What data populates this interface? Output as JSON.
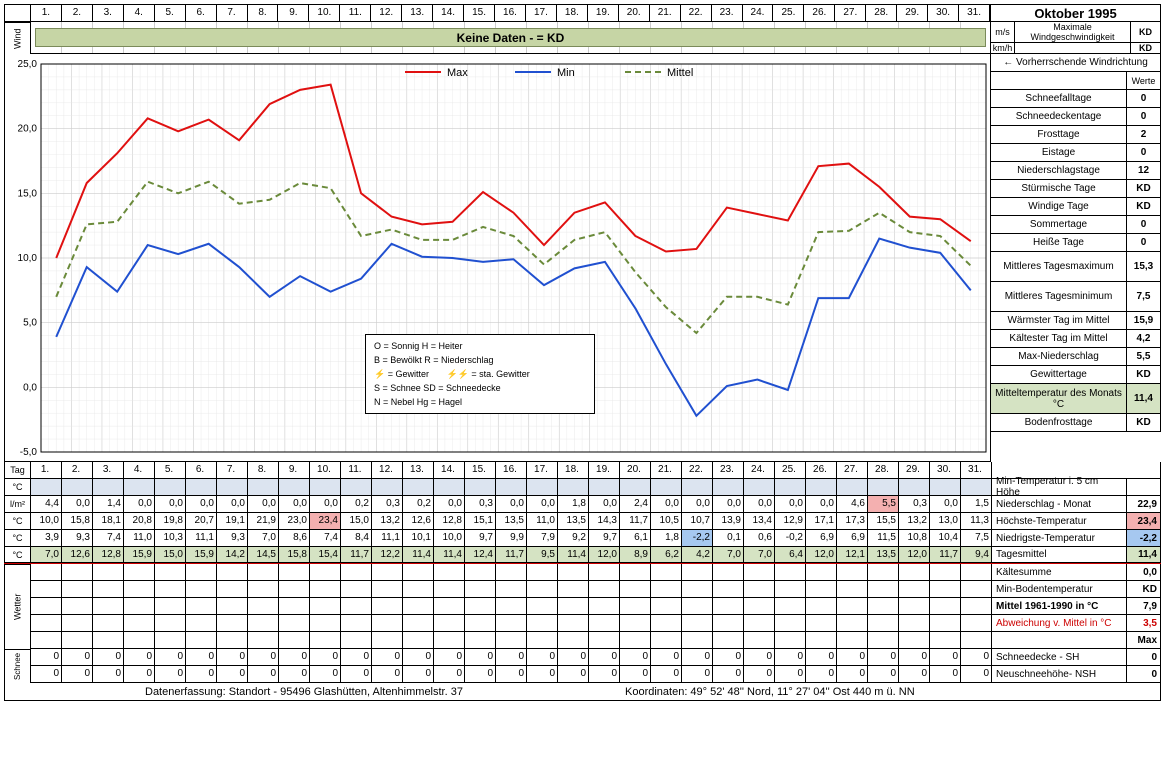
{
  "title": "Oktober 1995",
  "days": [
    "1.",
    "2.",
    "3.",
    "4.",
    "5.",
    "6.",
    "7.",
    "8.",
    "9.",
    "10.",
    "11.",
    "12.",
    "13.",
    "14.",
    "15.",
    "16.",
    "17.",
    "18.",
    "19.",
    "20.",
    "21.",
    "22.",
    "23.",
    "24.",
    "25.",
    "26.",
    "27.",
    "28.",
    "29.",
    "30.",
    "31."
  ],
  "wind": {
    "label": "Wind",
    "banner": "Keine Daten -  = KD",
    "ms_label": "m/s",
    "kmh_label": "km/h",
    "max_label": "Maximale Windgeschwindigkeit",
    "ms_value": "KD",
    "kmh_value": "KD"
  },
  "chart": {
    "type": "line",
    "ylim": [
      -5,
      25
    ],
    "ytick_step": 5,
    "yticks": [
      "25,0",
      "20,0",
      "15,0",
      "10,0",
      "5,0",
      "0,0",
      "-5,0"
    ],
    "grid_color": "#cccccc",
    "minor_grid_color": "#e6e6e6",
    "series": {
      "max": {
        "label": "Max",
        "color": "#e01010",
        "dash": "none",
        "width": 2,
        "values": [
          10.0,
          15.8,
          18.1,
          20.8,
          19.8,
          20.7,
          19.1,
          21.9,
          23.0,
          23.4,
          15.0,
          13.2,
          12.6,
          12.8,
          15.1,
          13.5,
          11.0,
          13.5,
          14.3,
          11.7,
          10.5,
          10.7,
          13.9,
          13.4,
          12.9,
          17.1,
          17.3,
          15.5,
          13.2,
          13.0,
          11.3
        ]
      },
      "min": {
        "label": "Min",
        "color": "#2050d0",
        "dash": "none",
        "width": 2,
        "values": [
          3.9,
          9.3,
          7.4,
          11.0,
          10.3,
          11.1,
          9.3,
          7.0,
          8.6,
          7.4,
          8.4,
          11.1,
          10.1,
          10.0,
          9.7,
          9.9,
          7.9,
          9.2,
          9.7,
          6.1,
          1.8,
          -2.2,
          0.1,
          0.6,
          -0.2,
          6.9,
          6.9,
          11.5,
          10.8,
          10.4,
          7.5
        ]
      },
      "mittel": {
        "label": "Mittel",
        "color": "#6a8a3a",
        "dash": "6,4",
        "width": 2,
        "values": [
          7.0,
          12.6,
          12.8,
          15.9,
          15.0,
          15.9,
          14.2,
          14.5,
          15.8,
          15.4,
          11.7,
          12.2,
          11.4,
          11.4,
          12.4,
          11.7,
          9.5,
          11.4,
          12.0,
          8.9,
          6.2,
          4.2,
          7.0,
          7.0,
          6.4,
          12.0,
          12.1,
          13.5,
          12.0,
          11.7,
          9.4
        ]
      }
    },
    "symbol_legend": [
      "O = Sonnig            H = Heiter",
      "B = Bewölkt           R = Niederschlag",
      "⚡ = Gewitter          ⚡⚡ = sta. Gewitter",
      "S = Schnee            SD = Schneedecke",
      "N = Nebel             Hg = Hagel"
    ]
  },
  "right_panel": [
    {
      "label": "← Vorherrschende Windrichtung",
      "value": "",
      "height": "short"
    },
    {
      "label": "",
      "value": "Werte",
      "height": "short",
      "small": true
    },
    {
      "label": "Schneefalltage",
      "value": "0"
    },
    {
      "label": "Schneedeckentage",
      "value": "0"
    },
    {
      "label": "Frosttage",
      "value": "2"
    },
    {
      "label": "Eistage",
      "value": "0"
    },
    {
      "label": "Niederschlagstage",
      "value": "12"
    },
    {
      "label": "Stürmische Tage",
      "value": "KD"
    },
    {
      "label": "Windige Tage",
      "value": "KD"
    },
    {
      "label": "Sommertage",
      "value": "0"
    },
    {
      "label": "Heiße Tage",
      "value": "0"
    },
    {
      "label": "Mittleres Tagesmaximum",
      "value": "15,3",
      "tall": true
    },
    {
      "label": "Mittleres Tagesminimum",
      "value": "7,5",
      "tall": true
    },
    {
      "label": "Wärmster Tag im Mittel",
      "value": "15,9"
    },
    {
      "label": "Kältester Tag im Mittel",
      "value": "4,2"
    },
    {
      "label": "Max-Niederschlag",
      "value": "5,5"
    },
    {
      "label": "Gewittertage",
      "value": "KD"
    },
    {
      "label": "Mitteltemperatur des Monats °C",
      "value": "11,4",
      "tall": true,
      "hl": true
    },
    {
      "label": "Bodenfrosttage",
      "value": "KD"
    }
  ],
  "tagrow_label": "Tag",
  "data_rows": [
    {
      "unit": "°C",
      "shade": "shade",
      "summary_label": "Min-Temperatur i. 5 cm Höhe",
      "summary_value": "",
      "values": [
        "",
        "",
        "",
        "",
        "",
        "",
        "",
        "",
        "",
        "",
        "",
        "",
        "",
        "",
        "",
        "",
        "",
        "",
        "",
        "",
        "",
        "",
        "",
        "",
        "",
        "",
        "",
        "",
        "",
        "",
        ""
      ]
    },
    {
      "unit": "l/m²",
      "summary_label": "Niederschlag - Monat",
      "summary_value": "22,9",
      "values": [
        "4,4",
        "0,0",
        "1,4",
        "0,0",
        "0,0",
        "0,0",
        "0,0",
        "0,0",
        "0,0",
        "0,0",
        "0,2",
        "0,3",
        "0,2",
        "0,0",
        "0,3",
        "0,0",
        "0,0",
        "1,8",
        "0,0",
        "2,4",
        "0,0",
        "0,0",
        "0,0",
        "0,0",
        "0,0",
        "0,0",
        "4,6",
        "5,5",
        "0,3",
        "0,0",
        "1,5"
      ],
      "hl_cells": {
        "27": "hl-max"
      }
    },
    {
      "unit": "°C",
      "summary_label": "Höchste-Temperatur",
      "summary_value": "23,4",
      "sum_hl": "hl-max",
      "values": [
        "10,0",
        "15,8",
        "18,1",
        "20,8",
        "19,8",
        "20,7",
        "19,1",
        "21,9",
        "23,0",
        "23,4",
        "15,0",
        "13,2",
        "12,6",
        "12,8",
        "15,1",
        "13,5",
        "11,0",
        "13,5",
        "14,3",
        "11,7",
        "10,5",
        "10,7",
        "13,9",
        "13,4",
        "12,9",
        "17,1",
        "17,3",
        "15,5",
        "13,2",
        "13,0",
        "11,3"
      ],
      "hl_cells": {
        "9": "hl-max"
      }
    },
    {
      "unit": "°C",
      "summary_label": "Niedrigste-Temperatur",
      "summary_value": "-2,2",
      "sum_hl": "hl-min",
      "values": [
        "3,9",
        "9,3",
        "7,4",
        "11,0",
        "10,3",
        "11,1",
        "9,3",
        "7,0",
        "8,6",
        "7,4",
        "8,4",
        "11,1",
        "10,1",
        "10,0",
        "9,7",
        "9,9",
        "7,9",
        "9,2",
        "9,7",
        "6,1",
        "1,8",
        "-2,2",
        "0,1",
        "0,6",
        "-0,2",
        "6,9",
        "6,9",
        "11,5",
        "10,8",
        "10,4",
        "7,5"
      ],
      "hl_cells": {
        "21": "hl-min"
      }
    },
    {
      "unit": "°C",
      "shade": "shade2",
      "summary_label": "Tagesmittel",
      "summary_value": "11,4",
      "sum_hl": "hl-green",
      "values": [
        "7,0",
        "12,6",
        "12,8",
        "15,9",
        "15,0",
        "15,9",
        "14,2",
        "14,5",
        "15,8",
        "15,4",
        "11,7",
        "12,2",
        "11,4",
        "11,4",
        "12,4",
        "11,7",
        "9,5",
        "11,4",
        "12,0",
        "8,9",
        "6,2",
        "4,2",
        "7,0",
        "7,0",
        "6,4",
        "12,0",
        "12,1",
        "13,5",
        "12,0",
        "11,7",
        "9,4"
      ]
    }
  ],
  "extra_summary": [
    {
      "label": "Kältesumme",
      "value": "0,0"
    },
    {
      "label": "Min-Bodentemperatur",
      "value": "KD"
    },
    {
      "label": "Mittel 1961-1990 in °C",
      "value": "7,9",
      "bold": true
    },
    {
      "label": "Abweichung v. Mittel in °C",
      "value": "3,5",
      "red": true
    },
    {
      "label": "",
      "value": "Max",
      "small": true
    }
  ],
  "wetter_label": "Wetter",
  "schnee_label": "Schnee",
  "schnee_rows": [
    {
      "summary_label": "Schneedecke -   SH",
      "summary_value": "0",
      "values": [
        "0",
        "0",
        "0",
        "0",
        "0",
        "0",
        "0",
        "0",
        "0",
        "0",
        "0",
        "0",
        "0",
        "0",
        "0",
        "0",
        "0",
        "0",
        "0",
        "0",
        "0",
        "0",
        "0",
        "0",
        "0",
        "0",
        "0",
        "0",
        "0",
        "0",
        "0"
      ]
    },
    {
      "summary_label": "Neuschneehöhe- NSH",
      "summary_value": "0",
      "values": [
        "0",
        "0",
        "0",
        "0",
        "0",
        "0",
        "0",
        "0",
        "0",
        "0",
        "0",
        "0",
        "0",
        "0",
        "0",
        "0",
        "0",
        "0",
        "0",
        "0",
        "0",
        "0",
        "0",
        "0",
        "0",
        "0",
        "0",
        "0",
        "0",
        "0",
        "0"
      ]
    }
  ],
  "footer": {
    "left": "Datenerfassung:  Standort -   95496  Glashütten, Altenhimmelstr. 37",
    "right": "Koordinaten:  49° 52' 48'' Nord,   11° 27' 04'' Ost   440 m ü. NN"
  }
}
